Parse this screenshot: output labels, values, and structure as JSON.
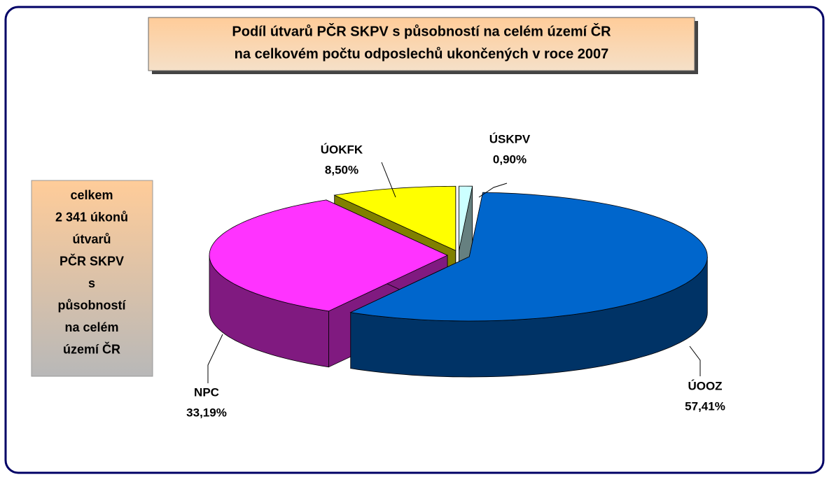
{
  "chart_data": {
    "type": "pie3d",
    "title": [
      "Podíl útvarů PČR SKPV s působností na celém území ČR",
      "na celkovém počtu odposlechů ukončených v roce 2007"
    ],
    "annotation": [
      "celkem",
      "2 341 úkonů",
      "útvarů",
      "PČR SKPV",
      "s",
      "působností",
      "na celém",
      "území ČR"
    ],
    "categories": [
      "ÚOOZ",
      "NPC",
      "ÚOKFK",
      "ÚSKPV"
    ],
    "values": [
      57.41,
      33.19,
      8.5,
      0.9
    ],
    "value_labels": [
      "57,41%",
      "33,19%",
      "8,50%",
      "0,90%"
    ],
    "colors": [
      "#0066cc",
      "#ff33ff",
      "#ffff00",
      "#ccffff"
    ]
  }
}
